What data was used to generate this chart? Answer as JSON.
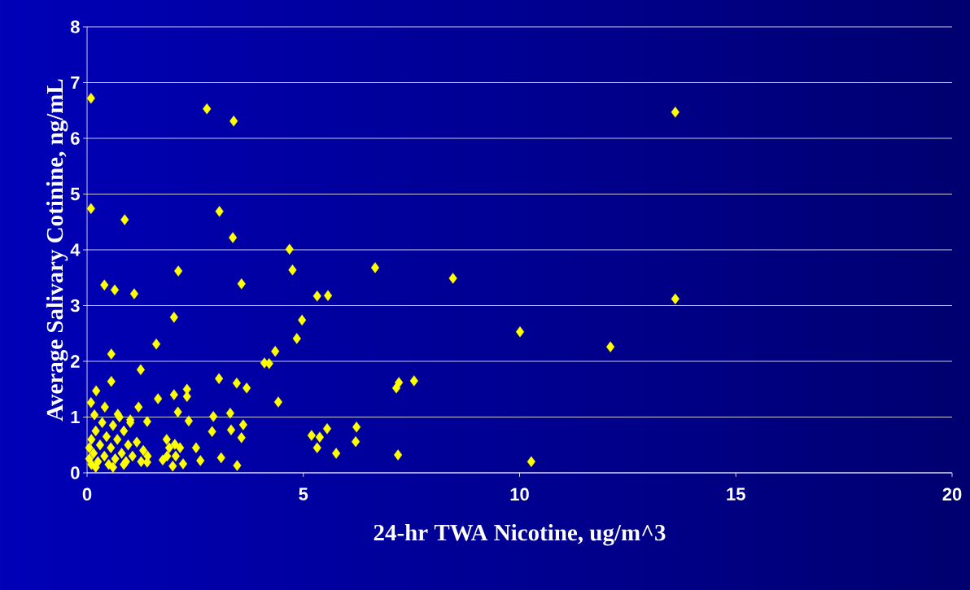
{
  "chart_data": {
    "type": "scatter",
    "xlabel": "24-hr TWA Nicotine, ug/m^3",
    "ylabel": "Average Salivary Cotinine, ng/mL",
    "marker": "diamond",
    "grid": "y",
    "xlim": [
      0,
      20
    ],
    "ylim": [
      0,
      8
    ],
    "xticks": [
      0,
      5,
      10,
      15,
      20
    ],
    "yticks": [
      0,
      1,
      2,
      3,
      4,
      5,
      6,
      7,
      8
    ],
    "series": [
      {
        "color": "#ffff00",
        "x": [
          0.09,
          0.09,
          2.77,
          3.39,
          13.6,
          0.87,
          3.06,
          3.37,
          4.68,
          4.75,
          6.66,
          8.46,
          13.6,
          0.4,
          0.64,
          1.09,
          2.11,
          3.57,
          5.32,
          5.57,
          2.01,
          4.97,
          4.85,
          10.01,
          12.1,
          0.56,
          1.6,
          4.35,
          4.1,
          4.21,
          1.24,
          0.21,
          0.56,
          3.05,
          3.46,
          3.69,
          7.15,
          7.21,
          7.56,
          4.42,
          1.64,
          2.01,
          2.31,
          2.31,
          1.19,
          0.41,
          0.09,
          2.1,
          2.35,
          2.92,
          3.31,
          1.39,
          0.17,
          0.71,
          1.0,
          2.89,
          3.33,
          3.61,
          3.57,
          5.19,
          5.38,
          5.55,
          5.32,
          5.76,
          6.23,
          6.21,
          7.19,
          10.27,
          3.47,
          3.1,
          2.52,
          2.62,
          2.22,
          1.98,
          2.03,
          1.84,
          1.75,
          1.39,
          0.05,
          0.05,
          0.1,
          0.1,
          0.15,
          0.2,
          0.25,
          0.3,
          0.35,
          0.4,
          0.45,
          0.5,
          0.55,
          0.6,
          0.65,
          0.7,
          0.75,
          0.8,
          0.85,
          0.9,
          0.95,
          1.0,
          1.05,
          1.15,
          1.25,
          1.3,
          1.4,
          0.2,
          0.6,
          0.85,
          1.9,
          2.05,
          1.85,
          2.15
        ],
        "values": [
          6.72,
          4.74,
          6.53,
          6.31,
          6.47,
          4.54,
          4.69,
          4.22,
          4.01,
          3.64,
          3.68,
          3.49,
          3.12,
          3.37,
          3.28,
          3.21,
          3.62,
          3.39,
          3.17,
          3.18,
          2.79,
          2.74,
          2.41,
          2.53,
          2.26,
          2.13,
          2.31,
          2.18,
          1.97,
          1.96,
          1.85,
          1.47,
          1.64,
          1.69,
          1.61,
          1.52,
          1.52,
          1.62,
          1.65,
          1.27,
          1.33,
          1.4,
          1.5,
          1.37,
          1.18,
          1.18,
          1.26,
          1.09,
          0.93,
          1.01,
          1.07,
          0.92,
          1.04,
          1.05,
          0.95,
          0.74,
          0.77,
          0.86,
          0.63,
          0.67,
          0.64,
          0.79,
          0.45,
          0.35,
          0.82,
          0.56,
          0.32,
          0.2,
          0.13,
          0.27,
          0.45,
          0.22,
          0.16,
          0.12,
          0.51,
          0.6,
          0.23,
          0.19,
          0.25,
          0.45,
          0.6,
          0.15,
          0.35,
          0.75,
          0.2,
          0.5,
          0.9,
          0.3,
          0.65,
          0.15,
          0.45,
          0.85,
          0.25,
          0.6,
          1.0,
          0.35,
          0.75,
          0.2,
          0.5,
          0.9,
          0.3,
          0.55,
          0.2,
          0.4,
          0.3,
          0.1,
          0.1,
          0.15,
          0.45,
          0.3,
          0.3,
          0.45
        ]
      }
    ]
  }
}
